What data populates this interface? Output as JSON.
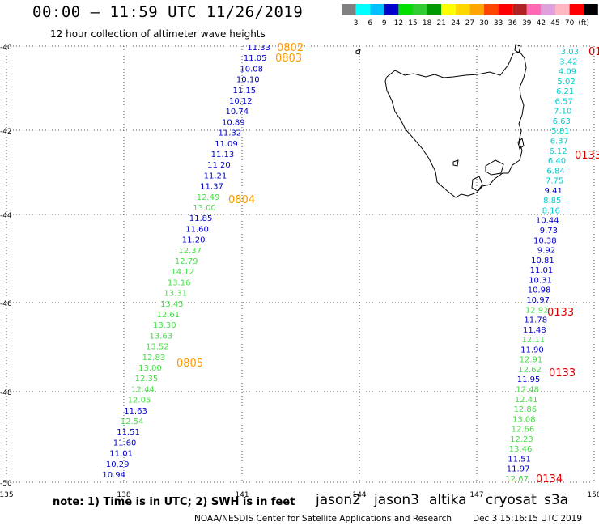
{
  "header": {
    "title": "00:00 – 11:59 UTC 11/26/2019",
    "subtitle": "12 hour collection of altimeter wave heights"
  },
  "legend": {
    "labels": [
      "3",
      "6",
      "9",
      "12",
      "15",
      "18",
      "21",
      "24",
      "27",
      "30",
      "33",
      "36",
      "39",
      "42",
      "45",
      "70",
      "(ft)"
    ],
    "colors": [
      "#808080",
      "#00ffff",
      "#00bfff",
      "#0000cd",
      "#00e000",
      "#32cd32",
      "#009900",
      "#ffff00",
      "#ffd700",
      "#ffa500",
      "#ff4500",
      "#ff0000",
      "#b22222",
      "#ff69b4",
      "#dda0dd",
      "#ffb6c1",
      "#ff0000",
      "#000000"
    ]
  },
  "axes": {
    "lat_labels": [
      "-40",
      "-42",
      "-44",
      "-46",
      "-48",
      "-50"
    ],
    "lon_labels": [
      "135",
      "138",
      "141",
      "144",
      "147",
      "150"
    ]
  },
  "tracks": {
    "west": [
      "11.33",
      "11.05",
      "10.08",
      "10.10",
      "11.15",
      "10.12",
      "10.74",
      "10.89",
      "11.32",
      "11.09",
      "11.13",
      "11.20",
      "11.21",
      "11.37",
      "12.49",
      "13.00",
      "11.85",
      "11.60",
      "11.20",
      "12.37",
      "12.79",
      "14.12",
      "13.16",
      "13.31",
      "13.45",
      "12.61",
      "13.30",
      "13.63",
      "13.52",
      "12.83",
      "13.00",
      "12.35",
      "12.44",
      "12.05",
      "11.63",
      "12.54",
      "11.51",
      "11.60",
      "11.01",
      "10.29",
      "10.94"
    ],
    "west_colors": [
      "b",
      "b",
      "b",
      "b",
      "b",
      "b",
      "b",
      "b",
      "b",
      "b",
      "b",
      "b",
      "b",
      "b",
      "g",
      "g",
      "b",
      "b",
      "b",
      "g",
      "g",
      "g",
      "g",
      "g",
      "g",
      "g",
      "g",
      "g",
      "g",
      "g",
      "g",
      "g",
      "g",
      "g",
      "b",
      "g",
      "b",
      "b",
      "b",
      "b",
      "b"
    ],
    "east": [
      "3.03",
      "3.42",
      "4.09",
      "5.02",
      "6.21",
      "6.57",
      "7.10",
      "6.63",
      "5.81",
      "6.37",
      "6.12",
      "6.40",
      "6.84",
      "7.75",
      "9.41",
      "8.85",
      "8.16",
      "10.44",
      "9.73",
      "10.38",
      "9.92",
      "10.81",
      "11.01",
      "10.31",
      "10.98",
      "10.97",
      "12.92",
      "11.78",
      "11.48",
      "12.11",
      "11.90",
      "12.91",
      "12.62",
      "11.95",
      "12.48",
      "12.41",
      "12.86",
      "13.08",
      "12.66",
      "12.23",
      "13.46",
      "11.51",
      "11.97",
      "12.67"
    ],
    "east_colors": [
      "c",
      "c",
      "c",
      "c",
      "c",
      "c",
      "c",
      "c",
      "c",
      "c",
      "c",
      "c",
      "c",
      "c",
      "b",
      "c",
      "c",
      "b",
      "b",
      "b",
      "b",
      "b",
      "b",
      "b",
      "b",
      "b",
      "g",
      "b",
      "b",
      "g",
      "b",
      "g",
      "g",
      "b",
      "g",
      "g",
      "g",
      "g",
      "g",
      "g",
      "g",
      "b",
      "b",
      "g"
    ]
  },
  "time_labels": {
    "altika": [
      "0802",
      "0803",
      "0804",
      "0805"
    ],
    "s3a": [
      "01",
      "0133",
      "0133",
      "0133",
      "0134"
    ]
  },
  "note": "note: 1) Time is in UTC; 2) SWH is in feet",
  "satellites": [
    {
      "name": "jason2",
      "color": "#0000cd"
    },
    {
      "name": "jason3",
      "color": "#22aa22"
    },
    {
      "name": "altika",
      "color": "#ff9900"
    },
    {
      "name": "cryosat",
      "color": "#dd0000"
    },
    {
      "name": "s3a",
      "color": "#aa0000"
    }
  ],
  "footer": {
    "credit": "NOAA/NESDIS Center for Satellite Applications and Research",
    "date": "Dec  3 15:16:15 UTC 2019"
  }
}
